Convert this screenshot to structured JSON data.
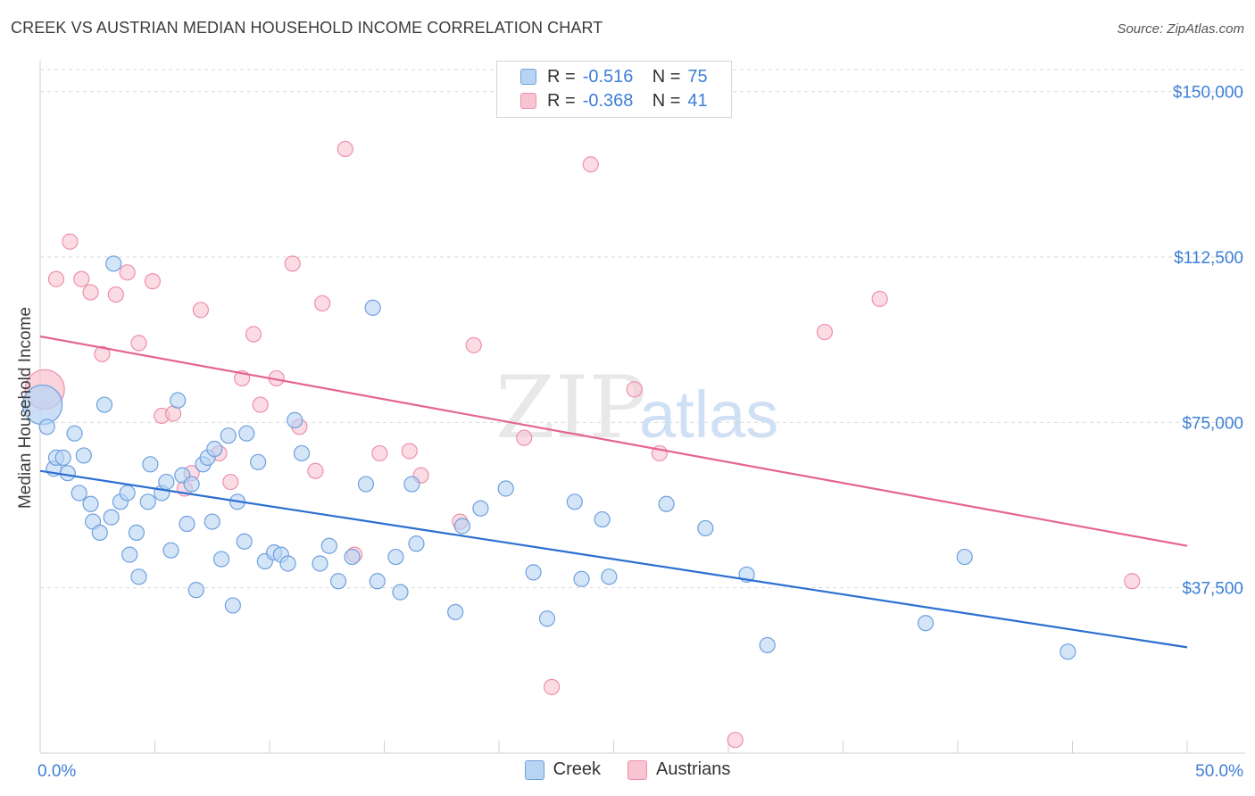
{
  "title": "CREEK VS AUSTRIAN MEDIAN HOUSEHOLD INCOME CORRELATION CHART",
  "source": "Source: ZipAtlas.com",
  "watermark": {
    "zip": "ZIP",
    "atlas": "atlas"
  },
  "legend": {
    "creek": {
      "r_label": "R =",
      "r_value": "-0.516",
      "n_label": "N =",
      "n_value": "75"
    },
    "austrians": {
      "r_label": "R =",
      "r_value": "-0.368",
      "n_label": "N =",
      "n_value": "41"
    }
  },
  "colors": {
    "creek_fill": "#b8d4f3",
    "creek_stroke": "#6ea0de",
    "creek_line": "#2a6fd1",
    "austrians_fill": "#f8c4d2",
    "austrians_stroke": "#ee8fab",
    "austrians_line": "#e5658f",
    "accent_text": "#3d7fd6"
  },
  "chart_data": {
    "type": "scatter",
    "title": "CREEK VS AUSTRIAN MEDIAN HOUSEHOLD INCOME CORRELATION CHART",
    "xlabel": "",
    "ylabel": "Median Household Income",
    "xlim": [
      0,
      50
    ],
    "ylim": [
      0,
      155000
    ],
    "x_tick_labels": [
      "0.0%",
      "50.0%"
    ],
    "y_ticks": [
      37500,
      75000,
      112500,
      150000
    ],
    "y_tick_labels": [
      "$37,500",
      "$75,000",
      "$112,500",
      "$150,000"
    ],
    "legend_position": "top-center",
    "series": [
      {
        "name": "Creek",
        "r": -0.516,
        "n": 75,
        "trend": {
          "x": [
            0,
            50
          ],
          "y": [
            64000,
            24000
          ]
        },
        "points": [
          [
            0.1,
            79000
          ],
          [
            0.3,
            74000
          ],
          [
            0.6,
            64500
          ],
          [
            0.7,
            67000
          ],
          [
            1.0,
            67000
          ],
          [
            1.2,
            63500
          ],
          [
            1.5,
            72500
          ],
          [
            1.7,
            59000
          ],
          [
            1.9,
            67500
          ],
          [
            2.2,
            56500
          ],
          [
            2.3,
            52500
          ],
          [
            2.6,
            50000
          ],
          [
            2.8,
            79000
          ],
          [
            3.1,
            53500
          ],
          [
            3.2,
            111000
          ],
          [
            3.5,
            57000
          ],
          [
            3.8,
            59000
          ],
          [
            3.9,
            45000
          ],
          [
            4.2,
            50000
          ],
          [
            4.3,
            40000
          ],
          [
            4.7,
            57000
          ],
          [
            4.8,
            65500
          ],
          [
            5.3,
            59000
          ],
          [
            5.5,
            61500
          ],
          [
            5.7,
            46000
          ],
          [
            6.0,
            80000
          ],
          [
            6.2,
            63000
          ],
          [
            6.4,
            52000
          ],
          [
            6.6,
            61000
          ],
          [
            6.8,
            37000
          ],
          [
            7.1,
            65500
          ],
          [
            7.3,
            67000
          ],
          [
            7.5,
            52500
          ],
          [
            7.6,
            69000
          ],
          [
            7.9,
            44000
          ],
          [
            8.2,
            72000
          ],
          [
            8.4,
            33500
          ],
          [
            8.6,
            57000
          ],
          [
            8.9,
            48000
          ],
          [
            9.0,
            72500
          ],
          [
            9.5,
            66000
          ],
          [
            9.8,
            43500
          ],
          [
            10.2,
            45500
          ],
          [
            10.5,
            45000
          ],
          [
            10.8,
            43000
          ],
          [
            11.1,
            75500
          ],
          [
            11.4,
            68000
          ],
          [
            12.2,
            43000
          ],
          [
            12.6,
            47000
          ],
          [
            13.0,
            39000
          ],
          [
            13.6,
            44500
          ],
          [
            14.2,
            61000
          ],
          [
            14.5,
            101000
          ],
          [
            14.7,
            39000
          ],
          [
            15.5,
            44500
          ],
          [
            15.7,
            36500
          ],
          [
            16.2,
            61000
          ],
          [
            16.4,
            47500
          ],
          [
            18.1,
            32000
          ],
          [
            18.4,
            51500
          ],
          [
            19.2,
            55500
          ],
          [
            20.3,
            60000
          ],
          [
            21.5,
            41000
          ],
          [
            22.1,
            30500
          ],
          [
            23.3,
            57000
          ],
          [
            23.6,
            39500
          ],
          [
            24.5,
            53000
          ],
          [
            24.8,
            40000
          ],
          [
            27.3,
            56500
          ],
          [
            29.0,
            51000
          ],
          [
            30.8,
            40500
          ],
          [
            31.7,
            24500
          ],
          [
            38.6,
            29500
          ],
          [
            40.3,
            44500
          ],
          [
            44.8,
            23000
          ]
        ]
      },
      {
        "name": "Austrians",
        "r": -0.368,
        "n": 41,
        "trend": {
          "x": [
            0,
            50
          ],
          "y": [
            94500,
            47000
          ]
        },
        "points": [
          [
            0.2,
            82500
          ],
          [
            0.7,
            107500
          ],
          [
            1.3,
            116000
          ],
          [
            1.8,
            107500
          ],
          [
            2.2,
            104500
          ],
          [
            2.7,
            90500
          ],
          [
            3.3,
            104000
          ],
          [
            3.8,
            109000
          ],
          [
            4.3,
            93000
          ],
          [
            4.9,
            107000
          ],
          [
            5.3,
            76500
          ],
          [
            5.8,
            77000
          ],
          [
            6.3,
            60000
          ],
          [
            6.6,
            63500
          ],
          [
            7.0,
            100500
          ],
          [
            7.8,
            68000
          ],
          [
            8.3,
            61500
          ],
          [
            8.8,
            85000
          ],
          [
            9.3,
            95000
          ],
          [
            9.6,
            79000
          ],
          [
            10.3,
            85000
          ],
          [
            11.0,
            111000
          ],
          [
            11.3,
            74000
          ],
          [
            12.0,
            64000
          ],
          [
            12.3,
            102000
          ],
          [
            13.3,
            137000
          ],
          [
            13.7,
            45000
          ],
          [
            14.8,
            68000
          ],
          [
            16.1,
            68500
          ],
          [
            16.6,
            63000
          ],
          [
            18.3,
            52500
          ],
          [
            18.9,
            92500
          ],
          [
            21.1,
            71500
          ],
          [
            22.3,
            15000
          ],
          [
            24.0,
            133500
          ],
          [
            25.9,
            82500
          ],
          [
            27.0,
            68000
          ],
          [
            30.3,
            3000
          ],
          [
            34.2,
            95500
          ],
          [
            36.6,
            103000
          ],
          [
            47.6,
            39000
          ]
        ]
      }
    ]
  }
}
